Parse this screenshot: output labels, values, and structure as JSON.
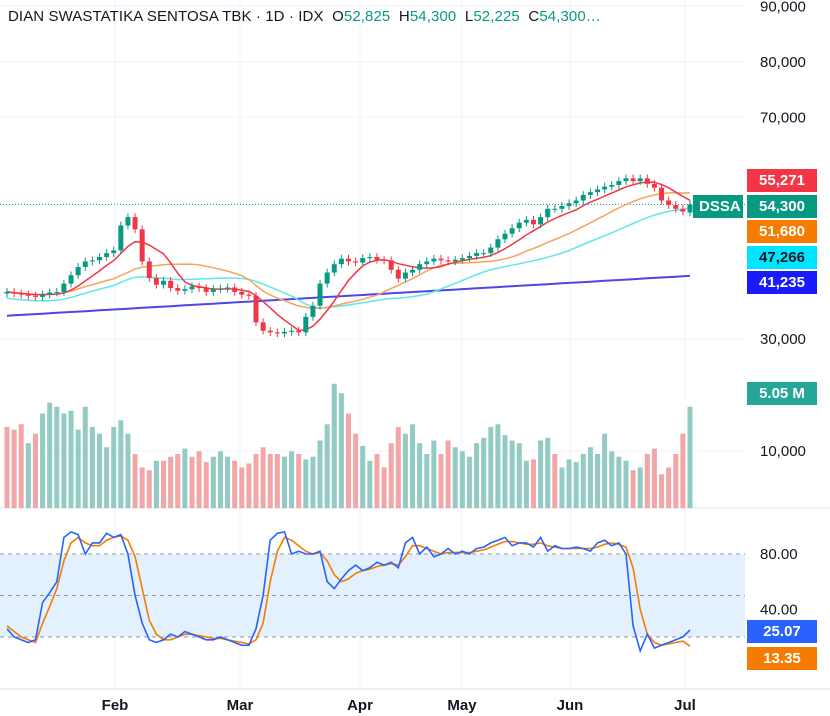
{
  "legend": {
    "name": "DIAN SWASTATIKA SENTOSA TBK",
    "interval": "1D",
    "exchange": "IDX",
    "open_label": "O",
    "open": "52,825",
    "high_label": "H",
    "high": "54,300",
    "low_label": "L",
    "low": "52,225",
    "close_label": "C",
    "close": "54,300…"
  },
  "price_tags": {
    "ma_red": "55,271",
    "ticker": "DSSA",
    "last": "54,300",
    "ma_orange": "51,680",
    "ma_cyan": "47,266",
    "ma_blue": "41,235",
    "volume": "5.05 M",
    "stoch_k": "25.07",
    "stoch_d": "13.35"
  },
  "colors": {
    "up": "#089981",
    "down": "#f23645",
    "vol_up": "#92cbc3",
    "vol_down": "#f2a6a8",
    "ma_red": "#f23645",
    "ma_orange": "#f7a35c",
    "ma_cyan": "#5ee8e8",
    "ma_blue": "#4f46e5",
    "stoch_k": "#2962ff",
    "stoch_d": "#f57c00",
    "band": "#e3f0fd"
  },
  "chart_data": {
    "type": "candlestick",
    "price_axis": {
      "ticks": [
        "90,000",
        "80,000",
        "70,000",
        "30,000"
      ],
      "values": [
        90000,
        80000,
        70000,
        30000
      ]
    },
    "volume_axis": {
      "ticks": [
        "10,000"
      ]
    },
    "stoch_axis": {
      "ticks": [
        "80.00",
        "40.00"
      ],
      "values": [
        80,
        40
      ],
      "band": [
        20,
        80
      ]
    },
    "x_ticks": [
      "Feb",
      "Mar",
      "Apr",
      "May",
      "Jun",
      "Jul"
    ],
    "close": [
      38500,
      38200,
      38000,
      37800,
      37600,
      38000,
      38400,
      38500,
      40000,
      41500,
      43000,
      44000,
      44200,
      44800,
      45500,
      46000,
      50500,
      52000,
      49800,
      44000,
      41000,
      39800,
      40500,
      39200,
      38700,
      39000,
      39500,
      39200,
      38500,
      39000,
      39100,
      39300,
      38500,
      38000,
      37800,
      33000,
      31500,
      31200,
      31000,
      31300,
      31500,
      31200,
      34000,
      36000,
      40000,
      42000,
      43500,
      44500,
      44000,
      43800,
      44600,
      44800,
      44300,
      44200,
      42500,
      40900,
      42000,
      42500,
      43500,
      44000,
      44500,
      44200,
      44000,
      44300,
      44600,
      45000,
      45500,
      45500,
      46500,
      48000,
      49000,
      50000,
      51000,
      51500,
      50700,
      52000,
      53500,
      53500,
      54000,
      54500,
      55000,
      56000,
      56500,
      57000,
      57500,
      57800,
      58500,
      59000,
      58500,
      59000,
      58000,
      57300,
      55000,
      54200,
      53500,
      53000,
      54300
    ],
    "open": [
      38200,
      38500,
      38200,
      38000,
      37800,
      37600,
      38000,
      38400,
      38500,
      40000,
      41500,
      43000,
      44000,
      44200,
      44800,
      45500,
      46000,
      50500,
      52000,
      49800,
      44000,
      41000,
      39800,
      40500,
      39200,
      38700,
      39000,
      39500,
      39200,
      38500,
      39000,
      39100,
      39300,
      38500,
      38000,
      37800,
      33000,
      31500,
      31200,
      31000,
      31300,
      31500,
      31200,
      34000,
      36000,
      40000,
      42000,
      43500,
      44500,
      44000,
      43800,
      44600,
      44800,
      44300,
      44200,
      42500,
      40900,
      42000,
      42500,
      43500,
      44000,
      44500,
      44200,
      44000,
      44300,
      44600,
      45000,
      45500,
      45500,
      46500,
      48000,
      49000,
      50000,
      51000,
      51500,
      50700,
      52000,
      53500,
      53500,
      54000,
      54500,
      55000,
      56000,
      56500,
      57000,
      57500,
      57800,
      58500,
      59000,
      58500,
      59000,
      58000,
      57300,
      55000,
      54200,
      53500,
      52825
    ],
    "volume": [
      60,
      58,
      62,
      48,
      55,
      70,
      78,
      75,
      70,
      72,
      58,
      75,
      60,
      55,
      45,
      60,
      65,
      55,
      40,
      30,
      28,
      35,
      35,
      38,
      40,
      44,
      38,
      42,
      34,
      38,
      42,
      38,
      35,
      30,
      33,
      40,
      45,
      40,
      40,
      38,
      42,
      40,
      36,
      38,
      50,
      62,
      92,
      85,
      70,
      55,
      46,
      35,
      40,
      30,
      48,
      60,
      55,
      62,
      48,
      40,
      50,
      40,
      50,
      45,
      42,
      38,
      48,
      52,
      60,
      62,
      54,
      50,
      48,
      35,
      36,
      50,
      52,
      40,
      30,
      36,
      34,
      40,
      45,
      40,
      55,
      42,
      38,
      35,
      28,
      30,
      40,
      44,
      25,
      30,
      40,
      55,
      75
    ],
    "vol_up": [
      0,
      0,
      0,
      1,
      0,
      1,
      1,
      1,
      1,
      1,
      1,
      1,
      1,
      1,
      1,
      1,
      1,
      1,
      0,
      0,
      0,
      1,
      0,
      0,
      0,
      1,
      0,
      0,
      0,
      1,
      1,
      1,
      0,
      0,
      0,
      0,
      0,
      0,
      0,
      1,
      1,
      0,
      1,
      1,
      1,
      1,
      1,
      1,
      0,
      0,
      1,
      1,
      0,
      0,
      0,
      0,
      1,
      1,
      1,
      1,
      1,
      0,
      0,
      1,
      1,
      1,
      1,
      1,
      1,
      1,
      1,
      1,
      1,
      1,
      0,
      1,
      1,
      0,
      1,
      1,
      1,
      1,
      1,
      1,
      1,
      1,
      1,
      1,
      0,
      1,
      0,
      0,
      0,
      0,
      0,
      0,
      1
    ],
    "stoch_k": [
      26,
      20,
      18,
      16,
      18,
      45,
      52,
      60,
      92,
      96,
      94,
      80,
      88,
      88,
      95,
      92,
      94,
      80,
      50,
      30,
      18,
      16,
      18,
      22,
      20,
      24,
      22,
      20,
      18,
      18,
      20,
      18,
      16,
      14,
      14,
      26,
      50,
      90,
      95,
      96,
      80,
      82,
      80,
      80,
      82,
      60,
      55,
      62,
      68,
      72,
      68,
      70,
      74,
      72,
      74,
      70,
      88,
      92,
      80,
      85,
      78,
      80,
      84,
      80,
      82,
      80,
      84,
      85,
      88,
      90,
      92,
      86,
      88,
      88,
      85,
      92,
      82,
      86,
      84,
      84,
      85,
      84,
      82,
      88,
      90,
      86,
      88,
      80,
      28,
      10,
      22,
      12,
      14,
      16,
      18,
      20,
      25.07
    ],
    "stoch_d": [
      28,
      24,
      20,
      18,
      16,
      30,
      42,
      55,
      75,
      88,
      92,
      88,
      86,
      86,
      90,
      92,
      93,
      90,
      78,
      55,
      32,
      22,
      18,
      18,
      20,
      22,
      22,
      21,
      20,
      19,
      19,
      18,
      17,
      16,
      15,
      18,
      30,
      60,
      82,
      92,
      90,
      86,
      82,
      80,
      81,
      75,
      65,
      60,
      62,
      66,
      68,
      69,
      71,
      72,
      73,
      72,
      78,
      86,
      86,
      84,
      82,
      80,
      81,
      81,
      81,
      81,
      82,
      83,
      85,
      87,
      89,
      89,
      88,
      87,
      87,
      88,
      86,
      85,
      84,
      84,
      84,
      84,
      84,
      85,
      87,
      88,
      87,
      85,
      70,
      40,
      22,
      16,
      14,
      15,
      16,
      17,
      13.35
    ]
  }
}
